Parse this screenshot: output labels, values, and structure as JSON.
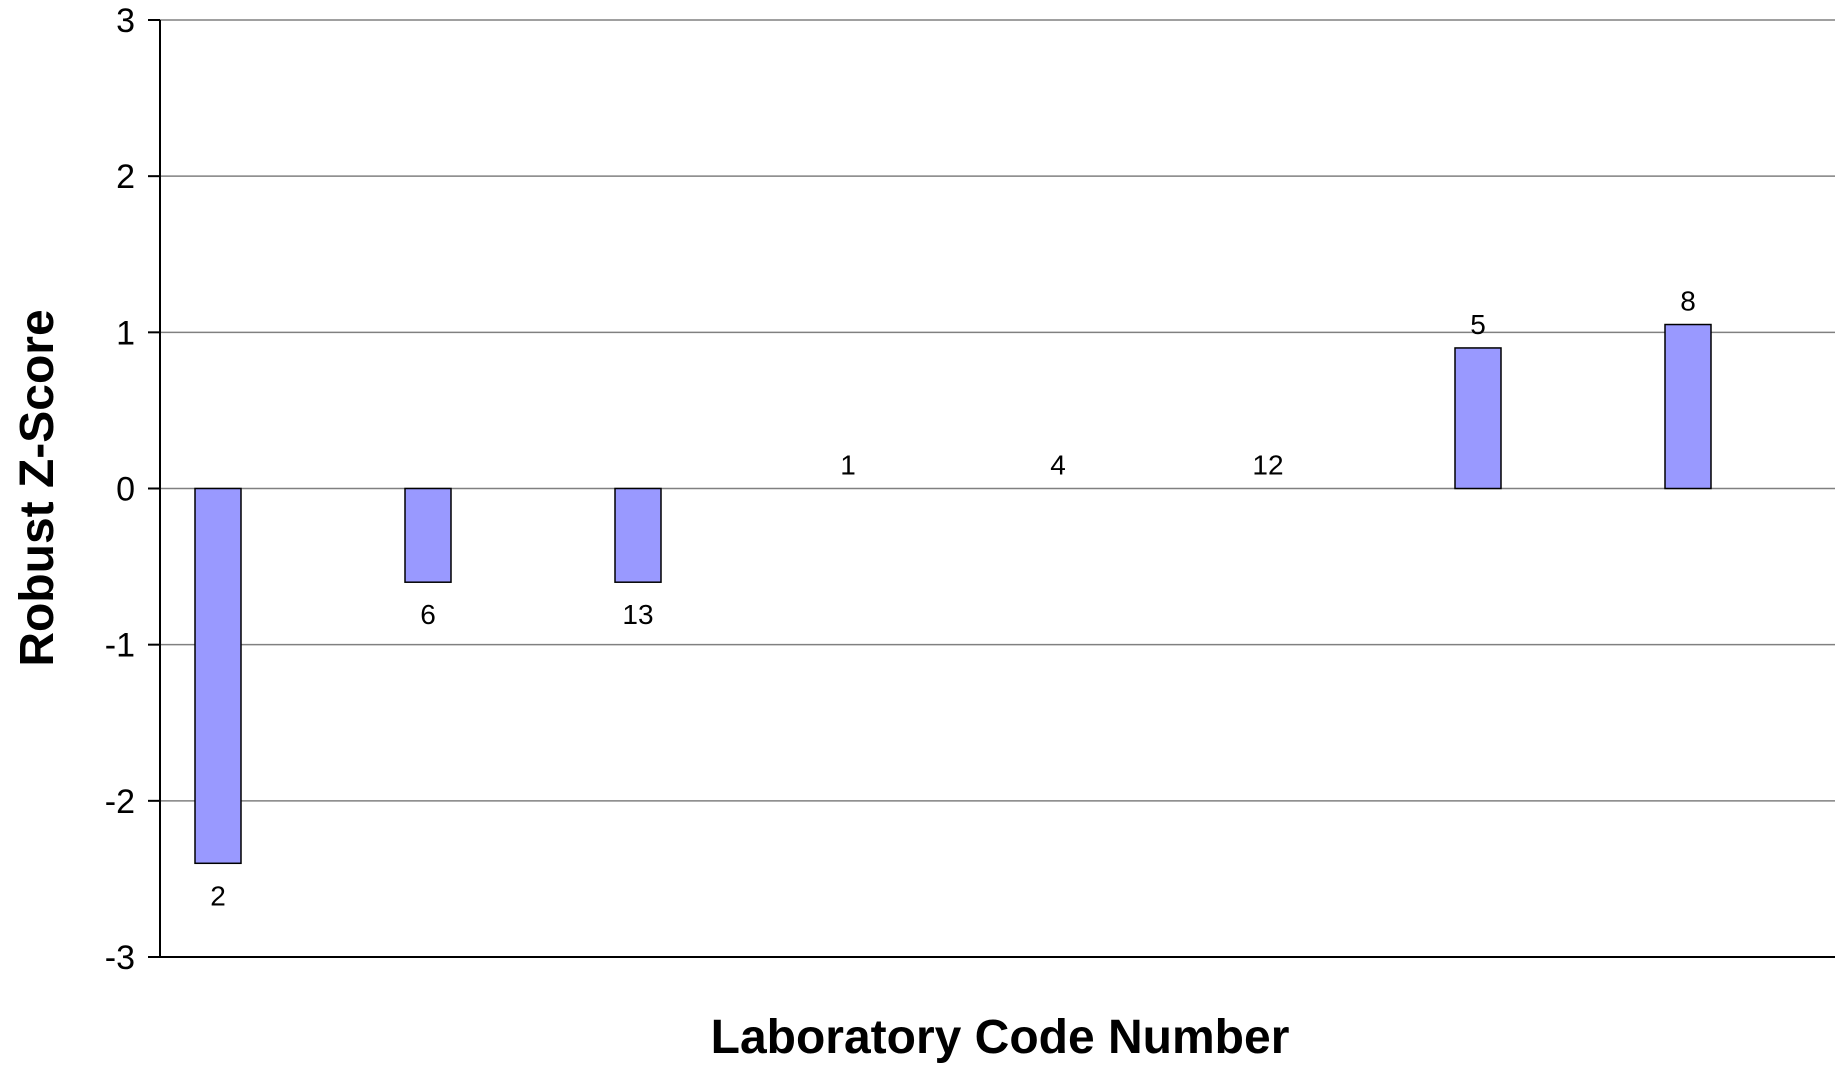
{
  "chart_data": {
    "type": "bar",
    "categories": [
      "2",
      "6",
      "13",
      "1",
      "4",
      "12",
      "5",
      "8"
    ],
    "values": [
      -2.4,
      -0.6,
      -0.6,
      0,
      0,
      0,
      0.9,
      1.05
    ],
    "xlabel": "Laboratory Code Number",
    "ylabel": "Robust Z-Score",
    "ylim": [
      -3,
      3
    ],
    "yticks": [
      "3",
      "2",
      "1",
      "0",
      "-1",
      "-2",
      "-3"
    ],
    "grid": true,
    "bar_color": "#9999ff"
  }
}
